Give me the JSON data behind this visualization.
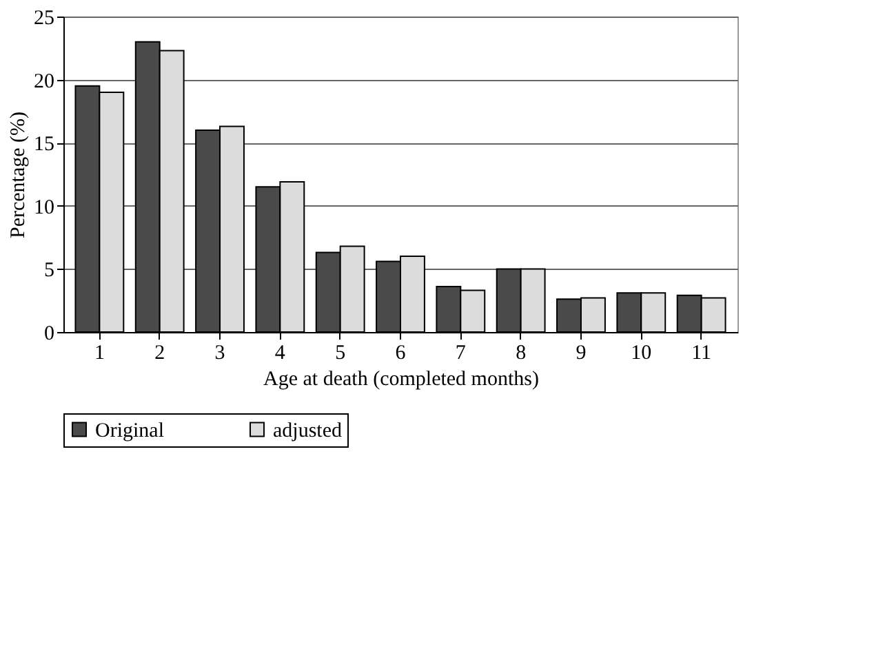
{
  "chart_data": {
    "type": "bar",
    "xlabel": "Age at death (completed months)",
    "ylabel": "Percentage (%)",
    "categories": [
      "1",
      "2",
      "3",
      "4",
      "5",
      "6",
      "7",
      "8",
      "9",
      "10",
      "11"
    ],
    "series": [
      {
        "name": "Original",
        "color": "#4a4a4a",
        "values": [
          19.5,
          23,
          16,
          11.5,
          6.3,
          5.6,
          3.6,
          5,
          2.6,
          3.1,
          2.9
        ]
      },
      {
        "name": "adjusted",
        "color": "#dcdcdc",
        "values": [
          19,
          22.3,
          16.3,
          11.9,
          6.8,
          6,
          3.3,
          5,
          2.7,
          3.1,
          2.7
        ]
      }
    ],
    "ylim": [
      0,
      25
    ],
    "yticks": [
      0,
      5,
      10,
      15,
      20,
      25
    ],
    "grid": "y",
    "legend": "bottom"
  }
}
